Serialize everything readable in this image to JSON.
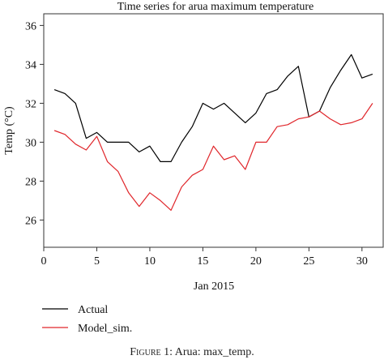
{
  "chart_data": {
    "type": "line",
    "title": "Time series for arua maximum temperature",
    "xlabel": "Jan 2015",
    "ylabel": "Temp (°C)",
    "xlim": [
      0,
      32
    ],
    "ylim": [
      24.6,
      36.6
    ],
    "xticks": [
      0,
      5,
      10,
      15,
      20,
      25,
      30
    ],
    "yticks": [
      26,
      28,
      30,
      32,
      34,
      36
    ],
    "grid": false,
    "legend_position": "bottom-left",
    "x": [
      1,
      2,
      3,
      4,
      5,
      6,
      7,
      8,
      9,
      10,
      11,
      12,
      13,
      14,
      15,
      16,
      17,
      18,
      19,
      20,
      21,
      22,
      23,
      24,
      25,
      26,
      27,
      28,
      29,
      30,
      31
    ],
    "series": [
      {
        "name": "Actual",
        "color": "#000000",
        "values": [
          32.7,
          32.5,
          32.0,
          30.2,
          30.5,
          30.0,
          30.0,
          30.0,
          29.5,
          29.8,
          29.0,
          29.0,
          30.0,
          30.8,
          32.0,
          31.7,
          32.0,
          31.5,
          31.0,
          31.5,
          32.5,
          32.7,
          33.4,
          33.9,
          31.3,
          31.6,
          32.8,
          33.7,
          34.5,
          33.3,
          33.5
        ]
      },
      {
        "name": "Model_sim.",
        "color": "#e0262b",
        "values": [
          30.6,
          30.4,
          29.9,
          29.6,
          30.3,
          29.0,
          28.5,
          27.4,
          26.7,
          27.4,
          27.0,
          26.5,
          27.7,
          28.3,
          28.6,
          29.8,
          29.1,
          29.3,
          28.6,
          30.0,
          30.0,
          30.8,
          30.9,
          31.2,
          31.3,
          31.6,
          31.2,
          30.9,
          31.0,
          31.2,
          32.0
        ]
      }
    ]
  },
  "caption": {
    "figure_label": "Figure 1:",
    "text": "Arua: max_temp."
  }
}
